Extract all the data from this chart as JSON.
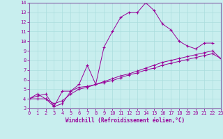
{
  "xlabel": "Windchill (Refroidissement éolien,°C)",
  "bg_color": "#c8eeee",
  "line_color": "#990099",
  "grid_color": "#aadddd",
  "spine_color": "#8866aa",
  "xmin": 0,
  "xmax": 23,
  "ymin": 3,
  "ymax": 14,
  "line1_x": [
    0,
    1,
    2,
    3,
    4,
    5,
    6,
    7,
    8,
    9,
    10,
    11,
    12,
    13,
    14,
    15,
    16,
    17,
    18,
    19,
    20,
    21,
    22
  ],
  "line1_y": [
    4.0,
    4.5,
    4.0,
    3.2,
    4.8,
    4.8,
    5.5,
    7.5,
    5.5,
    9.4,
    11.0,
    12.5,
    13.0,
    13.0,
    14.0,
    13.2,
    11.8,
    11.2,
    10.0,
    9.5,
    9.2,
    9.8,
    9.8
  ],
  "line2_x": [
    0,
    1,
    2,
    3,
    4,
    5,
    6,
    7,
    8,
    9,
    10,
    11,
    12,
    13,
    14,
    15,
    16,
    17,
    18,
    19,
    20,
    21,
    22,
    23
  ],
  "line2_y": [
    4.0,
    4.3,
    4.5,
    3.2,
    3.5,
    4.8,
    5.2,
    5.3,
    5.5,
    5.8,
    6.1,
    6.4,
    6.6,
    6.9,
    7.2,
    7.5,
    7.8,
    8.0,
    8.2,
    8.4,
    8.6,
    8.8,
    9.0,
    8.2
  ],
  "line3_x": [
    0,
    1,
    2,
    3,
    4,
    5,
    6,
    7,
    8,
    9,
    10,
    11,
    12,
    13,
    14,
    15,
    16,
    17,
    18,
    19,
    20,
    21,
    22,
    23
  ],
  "line3_y": [
    4.0,
    4.0,
    4.0,
    3.5,
    3.8,
    4.5,
    5.0,
    5.2,
    5.5,
    5.7,
    5.9,
    6.2,
    6.5,
    6.7,
    7.0,
    7.2,
    7.5,
    7.7,
    7.9,
    8.1,
    8.3,
    8.5,
    8.7,
    8.2
  ]
}
